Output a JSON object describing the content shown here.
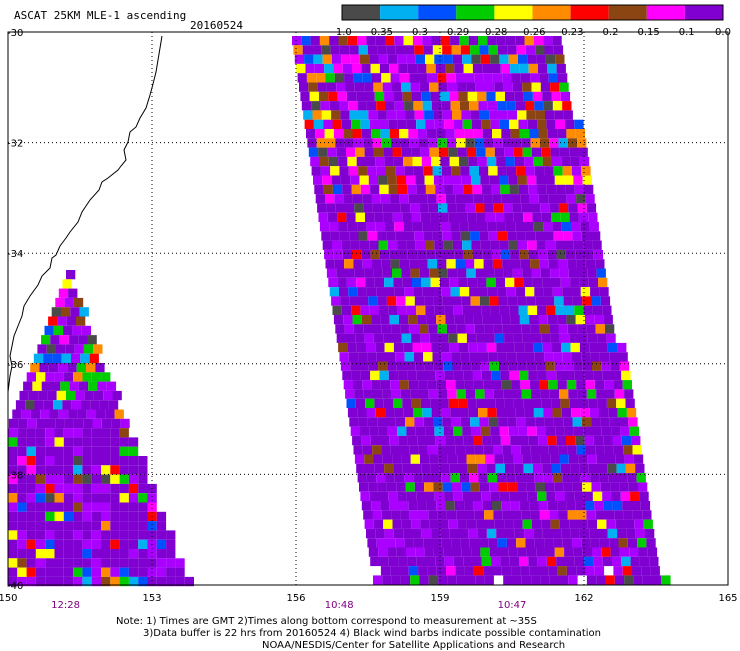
{
  "map": {
    "title": "ASCAT 25KM MLE-1 ascending",
    "date": "20160524",
    "lat_labels": [
      "-30",
      "-32",
      "-34",
      "-36",
      "-38",
      "-40"
    ],
    "lon_labels": [
      "150",
      "153",
      "156",
      "159",
      "162",
      "165"
    ],
    "pass_times": [
      {
        "label": "12:28",
        "lon": 151.2
      },
      {
        "label": "10:48",
        "lon": 156.9
      },
      {
        "label": "10:47",
        "lon": 160.5
      }
    ],
    "colorbar": {
      "labels": [
        "-1.0",
        "-0.35",
        "-0.3",
        "-0.29",
        "-0.28",
        "-0.26",
        "-0.23",
        "-0.2",
        "-0.15",
        "-0.1",
        "0.0"
      ],
      "colors": [
        "#4a4a4a",
        "#00b0f0",
        "#0050ff",
        "#00cc00",
        "#ffff00",
        "#ff8c00",
        "#ff0000",
        "#8b4513",
        "#ff00ff",
        "#7f00d0"
      ]
    },
    "notes": [
      "Note: 1) Times are GMT 2)Times along bottom correspond to measurement at ~35S",
      "3)Data buffer is 22 hrs from 20160524 4) Black wind barbs indicate possible contamination",
      "NOAA/NESDIS/Center for Satellite Applications and Research"
    ]
  }
}
